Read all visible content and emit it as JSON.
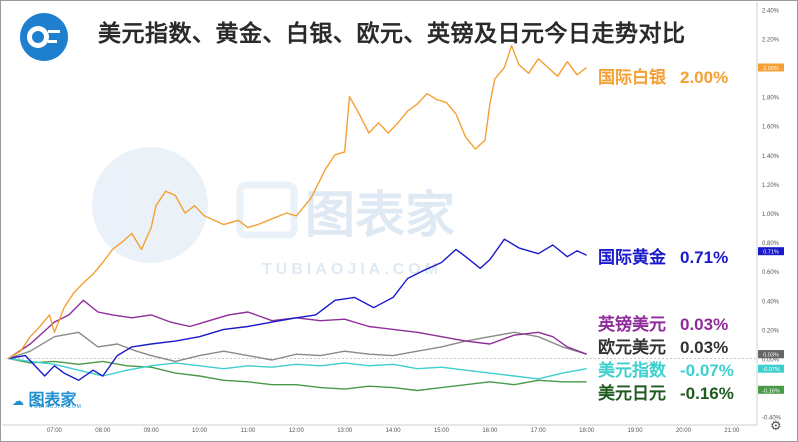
{
  "title": "美元指数、黄金、白银、欧元、英镑及日元今日走势对比",
  "watermark": {
    "brand": "图表家",
    "brand_pinyin": "TUBIAOJIA.COM"
  },
  "settings_icon": "gear-icon",
  "chart_data": {
    "type": "line",
    "ylim": [
      -0.45,
      2.45
    ],
    "y_ticks": [
      "2.40%",
      "2.20%",
      "2.00%",
      "1.80%",
      "1.60%",
      "1.40%",
      "1.20%",
      "1.00%",
      "0.80%",
      "0.60%",
      "0.40%",
      "0.20%",
      "0.00%",
      "-0.20%",
      "-0.40%"
    ],
    "y_tick_values": [
      2.4,
      2.2,
      2.0,
      1.8,
      1.6,
      1.4,
      1.2,
      1.0,
      0.8,
      0.6,
      0.4,
      0.2,
      0.0,
      -0.2,
      -0.4
    ],
    "x_ticks": [
      "07:00",
      "08:00",
      "09:00",
      "10:00",
      "11:00",
      "12:00",
      "13:00",
      "14:00",
      "15:00",
      "16:00",
      "17:00",
      "18:00",
      "19:00",
      "20:00",
      "21:00"
    ],
    "x_tick_hours": [
      7,
      8,
      9,
      10,
      11,
      12,
      13,
      14,
      15,
      16,
      17,
      18,
      19,
      20,
      21
    ],
    "xlim": [
      6.0,
      21.5
    ],
    "grid": false,
    "series": [
      {
        "name": "国际白银",
        "value_label": "2.00%",
        "badge": "2.00%",
        "color": "#f4a034",
        "points": [
          [
            6.05,
            0.0
          ],
          [
            6.3,
            0.05
          ],
          [
            6.5,
            0.15
          ],
          [
            6.7,
            0.22
          ],
          [
            6.9,
            0.3
          ],
          [
            7.0,
            0.18
          ],
          [
            7.2,
            0.35
          ],
          [
            7.4,
            0.45
          ],
          [
            7.6,
            0.52
          ],
          [
            7.8,
            0.58
          ],
          [
            8.0,
            0.66
          ],
          [
            8.2,
            0.75
          ],
          [
            8.4,
            0.8
          ],
          [
            8.6,
            0.86
          ],
          [
            8.8,
            0.75
          ],
          [
            9.0,
            0.9
          ],
          [
            9.1,
            1.05
          ],
          [
            9.3,
            1.15
          ],
          [
            9.5,
            1.12
          ],
          [
            9.7,
            1.0
          ],
          [
            9.9,
            1.05
          ],
          [
            10.1,
            0.98
          ],
          [
            10.3,
            0.95
          ],
          [
            10.5,
            0.92
          ],
          [
            10.8,
            0.95
          ],
          [
            11.0,
            0.9
          ],
          [
            11.2,
            0.92
          ],
          [
            11.5,
            0.96
          ],
          [
            11.8,
            1.0
          ],
          [
            12.0,
            0.98
          ],
          [
            12.3,
            1.1
          ],
          [
            12.6,
            1.3
          ],
          [
            12.8,
            1.4
          ],
          [
            13.0,
            1.42
          ],
          [
            13.1,
            1.8
          ],
          [
            13.3,
            1.68
          ],
          [
            13.5,
            1.55
          ],
          [
            13.7,
            1.62
          ],
          [
            13.9,
            1.55
          ],
          [
            14.1,
            1.62
          ],
          [
            14.3,
            1.7
          ],
          [
            14.5,
            1.75
          ],
          [
            14.7,
            1.82
          ],
          [
            14.9,
            1.78
          ],
          [
            15.1,
            1.76
          ],
          [
            15.3,
            1.68
          ],
          [
            15.5,
            1.52
          ],
          [
            15.7,
            1.44
          ],
          [
            15.9,
            1.5
          ],
          [
            16.0,
            1.75
          ],
          [
            16.1,
            1.92
          ],
          [
            16.3,
            2.0
          ],
          [
            16.45,
            2.15
          ],
          [
            16.6,
            2.02
          ],
          [
            16.8,
            1.96
          ],
          [
            17.0,
            2.06
          ],
          [
            17.2,
            2.0
          ],
          [
            17.4,
            1.94
          ],
          [
            17.6,
            2.04
          ],
          [
            17.8,
            1.95
          ],
          [
            18.0,
            2.0
          ]
        ]
      },
      {
        "name": "国际黄金",
        "value_label": "0.71%",
        "badge": "0.71%",
        "color": "#1a1acc",
        "points": [
          [
            6.05,
            0.0
          ],
          [
            6.4,
            0.02
          ],
          [
            6.8,
            -0.12
          ],
          [
            7.0,
            -0.05
          ],
          [
            7.2,
            -0.1
          ],
          [
            7.5,
            -0.15
          ],
          [
            7.8,
            -0.08
          ],
          [
            8.0,
            -0.12
          ],
          [
            8.3,
            0.02
          ],
          [
            8.6,
            0.08
          ],
          [
            9.0,
            0.1
          ],
          [
            9.5,
            0.12
          ],
          [
            10.0,
            0.15
          ],
          [
            10.5,
            0.2
          ],
          [
            11.0,
            0.22
          ],
          [
            11.5,
            0.25
          ],
          [
            12.0,
            0.28
          ],
          [
            12.4,
            0.3
          ],
          [
            12.8,
            0.4
          ],
          [
            13.2,
            0.42
          ],
          [
            13.6,
            0.35
          ],
          [
            14.0,
            0.42
          ],
          [
            14.3,
            0.55
          ],
          [
            14.6,
            0.6
          ],
          [
            15.0,
            0.66
          ],
          [
            15.3,
            0.75
          ],
          [
            15.5,
            0.7
          ],
          [
            15.8,
            0.62
          ],
          [
            16.0,
            0.68
          ],
          [
            16.3,
            0.82
          ],
          [
            16.6,
            0.76
          ],
          [
            17.0,
            0.72
          ],
          [
            17.3,
            0.78
          ],
          [
            17.6,
            0.7
          ],
          [
            17.8,
            0.74
          ],
          [
            18.0,
            0.71
          ]
        ]
      },
      {
        "name": "英镑美元",
        "value_label": "0.03%",
        "badge": "0.03%",
        "color": "#8e2d9a",
        "points": [
          [
            6.05,
            0.0
          ],
          [
            6.5,
            0.1
          ],
          [
            7.0,
            0.25
          ],
          [
            7.3,
            0.3
          ],
          [
            7.6,
            0.4
          ],
          [
            7.9,
            0.32
          ],
          [
            8.2,
            0.3
          ],
          [
            8.6,
            0.28
          ],
          [
            9.0,
            0.3
          ],
          [
            9.4,
            0.25
          ],
          [
            9.8,
            0.22
          ],
          [
            10.2,
            0.26
          ],
          [
            10.6,
            0.3
          ],
          [
            11.0,
            0.32
          ],
          [
            11.5,
            0.26
          ],
          [
            12.0,
            0.28
          ],
          [
            12.5,
            0.26
          ],
          [
            13.0,
            0.27
          ],
          [
            13.5,
            0.22
          ],
          [
            14.0,
            0.2
          ],
          [
            14.5,
            0.18
          ],
          [
            15.0,
            0.15
          ],
          [
            15.5,
            0.12
          ],
          [
            16.0,
            0.1
          ],
          [
            16.5,
            0.16
          ],
          [
            17.0,
            0.18
          ],
          [
            17.3,
            0.15
          ],
          [
            17.6,
            0.08
          ],
          [
            18.0,
            0.03
          ]
        ]
      },
      {
        "name": "欧元美元",
        "value_label": "0.03%",
        "badge": "0.03%",
        "color": "#8a8a8a",
        "points": [
          [
            6.05,
            0.0
          ],
          [
            6.5,
            0.05
          ],
          [
            7.0,
            0.15
          ],
          [
            7.5,
            0.18
          ],
          [
            7.9,
            0.08
          ],
          [
            8.3,
            0.1
          ],
          [
            8.7,
            0.05
          ],
          [
            9.0,
            0.02
          ],
          [
            9.5,
            -0.02
          ],
          [
            10.0,
            0.02
          ],
          [
            10.5,
            0.05
          ],
          [
            11.0,
            0.02
          ],
          [
            11.5,
            -0.01
          ],
          [
            12.0,
            0.03
          ],
          [
            12.5,
            0.02
          ],
          [
            13.0,
            0.05
          ],
          [
            13.5,
            0.03
          ],
          [
            14.0,
            0.02
          ],
          [
            14.5,
            0.05
          ],
          [
            15.0,
            0.08
          ],
          [
            15.5,
            0.12
          ],
          [
            16.0,
            0.15
          ],
          [
            16.5,
            0.18
          ],
          [
            17.0,
            0.15
          ],
          [
            17.5,
            0.08
          ],
          [
            18.0,
            0.03
          ]
        ]
      },
      {
        "name": "美元指数",
        "value_label": "-0.07%",
        "badge": "-0.07%",
        "color": "#3ecfcf",
        "points": [
          [
            6.05,
            0.0
          ],
          [
            6.5,
            -0.02
          ],
          [
            7.0,
            -0.04
          ],
          [
            7.5,
            -0.08
          ],
          [
            8.0,
            -0.12
          ],
          [
            8.5,
            -0.08
          ],
          [
            9.0,
            -0.05
          ],
          [
            9.5,
            -0.03
          ],
          [
            10.0,
            -0.05
          ],
          [
            10.5,
            -0.07
          ],
          [
            11.0,
            -0.05
          ],
          [
            11.5,
            -0.06
          ],
          [
            12.0,
            -0.04
          ],
          [
            12.5,
            -0.05
          ],
          [
            13.0,
            -0.03
          ],
          [
            13.5,
            -0.05
          ],
          [
            14.0,
            -0.04
          ],
          [
            14.5,
            -0.07
          ],
          [
            15.0,
            -0.06
          ],
          [
            15.5,
            -0.08
          ],
          [
            16.0,
            -0.1
          ],
          [
            16.5,
            -0.12
          ],
          [
            17.0,
            -0.14
          ],
          [
            17.5,
            -0.1
          ],
          [
            18.0,
            -0.07
          ]
        ]
      },
      {
        "name": "美元日元",
        "value_label": "-0.16%",
        "badge": "-0.16%",
        "color": "#4a9a4a",
        "points": [
          [
            6.05,
            0.0
          ],
          [
            6.5,
            -0.03
          ],
          [
            7.0,
            -0.02
          ],
          [
            7.5,
            -0.04
          ],
          [
            8.0,
            -0.02
          ],
          [
            8.5,
            -0.05
          ],
          [
            9.0,
            -0.06
          ],
          [
            9.5,
            -0.1
          ],
          [
            10.0,
            -0.12
          ],
          [
            10.5,
            -0.15
          ],
          [
            11.0,
            -0.16
          ],
          [
            11.5,
            -0.18
          ],
          [
            12.0,
            -0.18
          ],
          [
            12.5,
            -0.2
          ],
          [
            13.0,
            -0.21
          ],
          [
            13.5,
            -0.19
          ],
          [
            14.0,
            -0.2
          ],
          [
            14.5,
            -0.22
          ],
          [
            15.0,
            -0.2
          ],
          [
            15.5,
            -0.18
          ],
          [
            16.0,
            -0.16
          ],
          [
            16.5,
            -0.18
          ],
          [
            17.0,
            -0.15
          ],
          [
            17.5,
            -0.16
          ],
          [
            18.0,
            -0.16
          ]
        ]
      }
    ]
  }
}
